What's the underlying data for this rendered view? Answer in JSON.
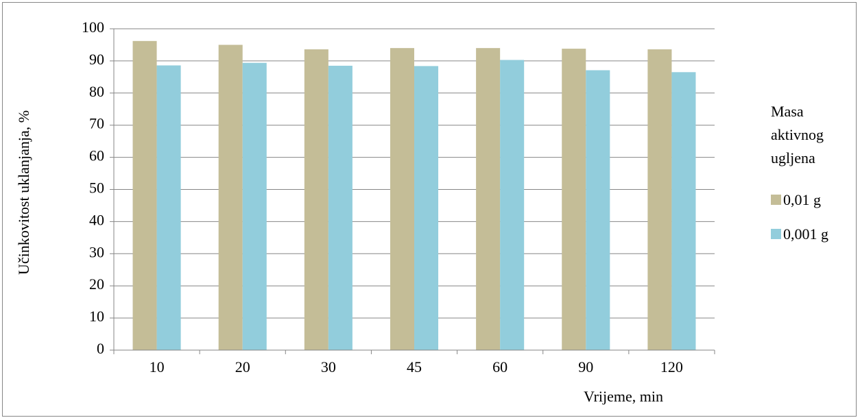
{
  "chart_data": {
    "type": "bar",
    "title": "",
    "xlabel": "Vrijeme, min",
    "ylabel": "Učinkovitost uklanjanja, %",
    "categories": [
      "10",
      "20",
      "30",
      "45",
      "60",
      "90",
      "120"
    ],
    "series": [
      {
        "name": "0,01 g",
        "color": "#C4BD97",
        "values": [
          96.2,
          95.0,
          93.6,
          94.0,
          94.0,
          93.8,
          93.6
        ]
      },
      {
        "name": "0,001 g",
        "color": "#92CDDC",
        "values": [
          88.6,
          89.4,
          88.5,
          88.4,
          90.3,
          87.1,
          86.5
        ]
      }
    ],
    "ylim": [
      0,
      100
    ],
    "yticks": [
      0,
      10,
      20,
      30,
      40,
      50,
      60,
      70,
      80,
      90,
      100
    ],
    "grid": true,
    "legend": {
      "title_lines": [
        "Masa",
        "aktivnog",
        "ugljena"
      ],
      "placement": "right"
    }
  }
}
